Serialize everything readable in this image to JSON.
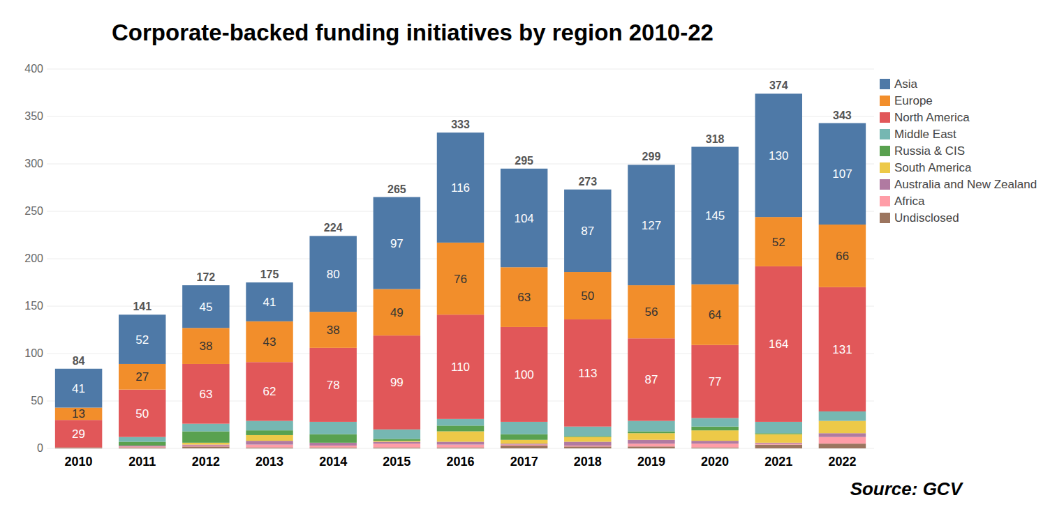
{
  "chart_data": {
    "type": "bar",
    "stacked": true,
    "data_labels": true,
    "grid": true,
    "legend": "right",
    "title": "Corporate-backed funding initiatives by region 2010-22",
    "source": "Source: GCV",
    "categories": [
      "2010",
      "2011",
      "2012",
      "2013",
      "2014",
      "2015",
      "2016",
      "2017",
      "2018",
      "2019",
      "2020",
      "2021",
      "2022"
    ],
    "ylim": [
      0,
      400
    ],
    "yticks": [
      0,
      50,
      100,
      150,
      200,
      250,
      300,
      350,
      400
    ],
    "totals": [
      84,
      141,
      172,
      175,
      224,
      265,
      333,
      295,
      273,
      299,
      318,
      374,
      343
    ],
    "series": [
      {
        "name": "Asia",
        "color": "#4e79a7",
        "data_labels": true,
        "values": [
          41,
          52,
          45,
          41,
          80,
          97,
          116,
          104,
          87,
          127,
          145,
          130,
          107
        ]
      },
      {
        "name": "Europe",
        "color": "#f28e2b",
        "data_labels": true,
        "values": [
          13,
          27,
          38,
          43,
          38,
          49,
          76,
          63,
          50,
          56,
          64,
          52,
          66
        ]
      },
      {
        "name": "North America",
        "color": "#e15759",
        "data_labels": true,
        "values": [
          29,
          50,
          63,
          62,
          78,
          99,
          110,
          100,
          113,
          87,
          77,
          164,
          131
        ]
      },
      {
        "name": "Middle East",
        "color": "#76b7b2",
        "values": [
          0,
          5,
          8,
          10,
          13,
          10,
          7,
          13,
          10,
          11,
          9,
          12,
          10
        ]
      },
      {
        "name": "Russia & CIS",
        "color": "#59a14f",
        "values": [
          0,
          4,
          12,
          5,
          9,
          2,
          6,
          6,
          1,
          2,
          4,
          1,
          0
        ]
      },
      {
        "name": "South America",
        "color": "#edc948",
        "values": [
          0,
          0,
          2,
          6,
          0,
          1,
          11,
          4,
          5,
          7,
          11,
          9,
          13
        ]
      },
      {
        "name": "Australia and New Zealand",
        "color": "#b07aa1",
        "values": [
          0,
          1,
          1,
          4,
          3,
          2,
          3,
          1,
          4,
          4,
          3,
          1,
          4
        ]
      },
      {
        "name": "Africa",
        "color": "#ff9da7",
        "values": [
          0,
          1,
          1,
          3,
          2,
          4,
          3,
          1,
          1,
          3,
          4,
          1,
          7
        ]
      },
      {
        "name": "Undisclosed",
        "color": "#9c755f",
        "values": [
          1,
          1,
          2,
          1,
          1,
          1,
          1,
          3,
          2,
          2,
          1,
          4,
          5
        ]
      }
    ]
  }
}
